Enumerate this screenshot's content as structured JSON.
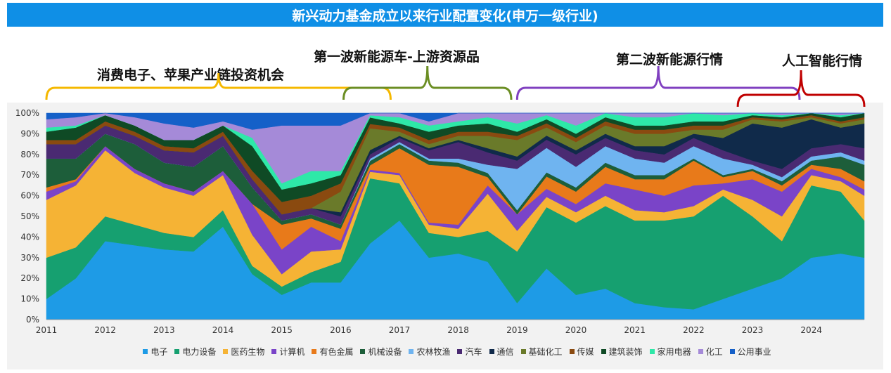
{
  "title": "新兴动力基金成立以来行业配置变化(申万一级行业)",
  "annotations": [
    {
      "label": "消费电子、苹果产业链投资机会",
      "color": "#f5b800"
    },
    {
      "label": "第一波新能源车-上游资源品",
      "color": "#6b8e23"
    },
    {
      "label": "第二波新能源行情",
      "color": "#8040c0"
    },
    {
      "label": "人工智能行情",
      "color": "#c00000"
    }
  ],
  "chart_data": {
    "type": "area",
    "stacked": true,
    "percent": true,
    "x": [
      2011.0,
      2011.5,
      2012.0,
      2012.5,
      2013.0,
      2013.5,
      2014.0,
      2014.5,
      2015.0,
      2015.5,
      2016.0,
      2016.5,
      2017.0,
      2017.5,
      2018.0,
      2018.5,
      2019.0,
      2019.5,
      2020.0,
      2020.5,
      2021.0,
      2021.5,
      2022.0,
      2022.5,
      2023.0,
      2023.5,
      2024.0,
      2024.5,
      2024.9
    ],
    "x_ticks": [
      "2011",
      "2012",
      "2013",
      "2014",
      "2015",
      "2016",
      "2017",
      "2018",
      "2019",
      "2020",
      "2021",
      "2022",
      "2023",
      "2024"
    ],
    "y_ticks": [
      "0%",
      "10%",
      "20%",
      "30%",
      "40%",
      "50%",
      "60%",
      "70%",
      "80%",
      "90%",
      "100%"
    ],
    "ylim": [
      0,
      100
    ],
    "series": [
      {
        "name": "电子",
        "color": "#1e9be6",
        "values": [
          10,
          20,
          38,
          36,
          34,
          33,
          45,
          22,
          12,
          18,
          18,
          35,
          48,
          30,
          32,
          28,
          8,
          25,
          12,
          15,
          8,
          6,
          5,
          10,
          15,
          20,
          30,
          32,
          30
        ]
      },
      {
        "name": "电力设备",
        "color": "#16a070",
        "values": [
          20,
          15,
          12,
          10,
          8,
          7,
          8,
          4,
          4,
          5,
          10,
          30,
          18,
          12,
          8,
          15,
          25,
          30,
          35,
          40,
          40,
          42,
          45,
          50,
          35,
          18,
          35,
          30,
          18
        ]
      },
      {
        "name": "医药生物",
        "color": "#f5b335",
        "values": [
          28,
          30,
          32,
          25,
          22,
          20,
          17,
          15,
          6,
          10,
          6,
          3,
          4,
          4,
          4,
          18,
          10,
          5,
          5,
          5,
          5,
          4,
          5,
          3,
          8,
          12,
          5,
          5,
          12
        ]
      },
      {
        "name": "计算机",
        "color": "#7a44c8",
        "values": [
          4,
          2,
          2,
          2,
          2,
          2,
          2,
          15,
          12,
          12,
          4,
          1,
          1,
          1,
          2,
          4,
          8,
          4,
          4,
          6,
          10,
          8,
          10,
          3,
          10,
          12,
          3,
          2,
          3
        ]
      },
      {
        "name": "有色金属",
        "color": "#e87a1a",
        "values": [
          2,
          1,
          0,
          0,
          0,
          0,
          0,
          0,
          12,
          4,
          6,
          2,
          12,
          28,
          28,
          4,
          0,
          6,
          6,
          8,
          5,
          8,
          12,
          3,
          4,
          3,
          2,
          4,
          4
        ]
      },
      {
        "name": "机械设备",
        "color": "#1d5e3a",
        "values": [
          14,
          10,
          6,
          12,
          10,
          12,
          12,
          8,
          2,
          2,
          2,
          2,
          2,
          2,
          2,
          2,
          2,
          2,
          2,
          2,
          2,
          2,
          1,
          1,
          1,
          2,
          2,
          6,
          8
        ]
      },
      {
        "name": "农林牧渔",
        "color": "#6fb4f0",
        "values": [
          0,
          0,
          0,
          0,
          0,
          0,
          0,
          0,
          0,
          0,
          0,
          1,
          1,
          1,
          2,
          4,
          20,
          12,
          10,
          8,
          8,
          6,
          6,
          8,
          2,
          2,
          2,
          2,
          2
        ]
      },
      {
        "name": "汽车",
        "color": "#4a2a72",
        "values": [
          7,
          7,
          4,
          4,
          6,
          7,
          5,
          4,
          3,
          3,
          4,
          2,
          2,
          4,
          8,
          6,
          4,
          4,
          6,
          4,
          4,
          4,
          4,
          4,
          2,
          4,
          4,
          4,
          6
        ]
      },
      {
        "name": "通信",
        "color": "#102a4a",
        "values": [
          0,
          0,
          0,
          0,
          0,
          0,
          0,
          0,
          0,
          0,
          2,
          2,
          1,
          1,
          1,
          2,
          2,
          2,
          2,
          2,
          2,
          4,
          2,
          6,
          18,
          20,
          14,
          8,
          12
        ]
      },
      {
        "name": "基础化工",
        "color": "#6a7a2a",
        "values": [
          0,
          0,
          0,
          0,
          0,
          0,
          0,
          0,
          0,
          0,
          10,
          10,
          2,
          2,
          2,
          6,
          8,
          4,
          4,
          4,
          6,
          6,
          2,
          4,
          2,
          3,
          1,
          2,
          2
        ]
      },
      {
        "name": "传媒",
        "color": "#8a4a10",
        "values": [
          2,
          2,
          2,
          2,
          2,
          2,
          2,
          4,
          6,
          6,
          4,
          2,
          2,
          2,
          2,
          2,
          2,
          2,
          2,
          2,
          2,
          2,
          2,
          2,
          1,
          1,
          1,
          1,
          1
        ]
      },
      {
        "name": "建筑装饰",
        "color": "#0f4a25",
        "values": [
          4,
          6,
          3,
          3,
          3,
          4,
          3,
          12,
          6,
          6,
          4,
          3,
          2,
          4,
          3,
          4,
          2,
          2,
          2,
          2,
          2,
          2,
          2,
          2,
          1,
          1,
          1,
          2,
          2
        ]
      },
      {
        "name": "家用电器",
        "color": "#2ee8a8",
        "values": [
          2,
          1,
          0,
          0,
          0,
          0,
          0,
          4,
          3,
          6,
          2,
          1,
          3,
          3,
          2,
          3,
          4,
          2,
          4,
          2,
          4,
          4,
          4,
          3,
          1,
          1,
          0,
          1,
          0
        ]
      },
      {
        "name": "化工",
        "color": "#a58ad8",
        "values": [
          4,
          4,
          1,
          4,
          8,
          6,
          2,
          4,
          28,
          22,
          22,
          1,
          2,
          2,
          4,
          2,
          5,
          1,
          6,
          0,
          2,
          2,
          0,
          1,
          0,
          1,
          0,
          1,
          0
        ]
      },
      {
        "name": "公用事业",
        "color": "#1560c8",
        "values": [
          3,
          2,
          0,
          2,
          5,
          7,
          4,
          8,
          6,
          6,
          6,
          0,
          0,
          4,
          0,
          0,
          0,
          0,
          0,
          0,
          0,
          0,
          0,
          0,
          0,
          0,
          0,
          0,
          0
        ]
      }
    ]
  }
}
